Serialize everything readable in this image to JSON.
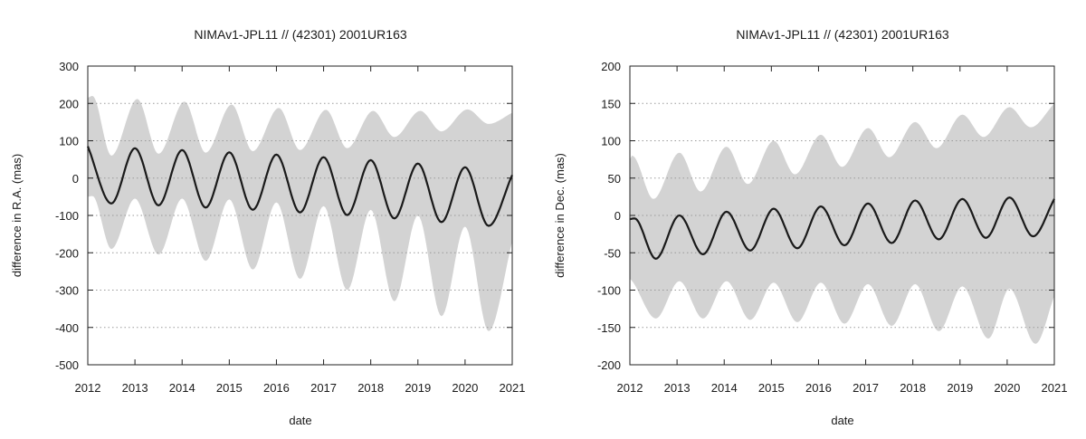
{
  "chart_data": [
    {
      "type": "line",
      "title": "NIMAv1-JPL11 // (42301) 2001UR163",
      "xlabel": "date",
      "ylabel": "difference in R.A. (mas)",
      "xlim": [
        2012,
        2021
      ],
      "ylim": [
        -500,
        300
      ],
      "x_ticks": [
        "2012",
        "2013",
        "2014",
        "2015",
        "2016",
        "2017",
        "2018",
        "2019",
        "2020",
        "2021"
      ],
      "y_ticks": [
        "300",
        "200",
        "100",
        "0",
        "-100",
        "-200",
        "-300",
        "-400",
        "-500"
      ],
      "grid": "horizontal dotted",
      "colors": {
        "band": "#d3d3d3",
        "line": "#1a1a1a"
      },
      "series": [
        {
          "kind": "mean-line",
          "x": [
            2012.0,
            2012.5,
            2013.0,
            2013.5,
            2014.0,
            2014.5,
            2015.0,
            2015.5,
            2016.0,
            2016.5,
            2017.0,
            2017.5,
            2018.0,
            2018.5,
            2019.0,
            2019.5,
            2020.0,
            2020.5,
            2021.0
          ],
          "y": [
            85,
            -68,
            80,
            -73,
            75,
            -79,
            69,
            -85,
            63,
            -92,
            56,
            -99,
            48,
            -108,
            39,
            -118,
            29,
            -128,
            8
          ]
        },
        {
          "kind": "uncertainty-band-upper",
          "x": [
            2012.0,
            2012.1,
            2012.5,
            2013.05,
            2013.5,
            2014.05,
            2014.5,
            2015.05,
            2015.5,
            2016.05,
            2016.5,
            2017.05,
            2017.5,
            2018.05,
            2018.5,
            2019.05,
            2019.5,
            2020.05,
            2020.5,
            2021.0
          ],
          "y": [
            215,
            220,
            60,
            212,
            65,
            205,
            68,
            197,
            72,
            188,
            75,
            183,
            80,
            180,
            110,
            180,
            125,
            184,
            145,
            175
          ]
        },
        {
          "kind": "uncertainty-band-lower",
          "x": [
            2012.0,
            2012.1,
            2012.5,
            2013.0,
            2013.5,
            2014.0,
            2014.5,
            2015.0,
            2015.5,
            2016.0,
            2016.5,
            2017.0,
            2017.5,
            2018.0,
            2018.5,
            2019.0,
            2019.5,
            2020.0,
            2020.5,
            2021.0
          ],
          "y": [
            -50,
            -48,
            -190,
            -55,
            -205,
            -55,
            -222,
            -57,
            -245,
            -65,
            -270,
            -75,
            -300,
            -85,
            -330,
            -100,
            -370,
            -130,
            -410,
            -170
          ]
        }
      ]
    },
    {
      "type": "line",
      "title": "NIMAv1-JPL11 // (42301) 2001UR163",
      "xlabel": "date",
      "ylabel": "difference in Dec. (mas)",
      "xlim": [
        2012,
        2021
      ],
      "ylim": [
        -200,
        200
      ],
      "x_ticks": [
        "2012",
        "2013",
        "2014",
        "2015",
        "2016",
        "2017",
        "2018",
        "2019",
        "2020",
        "2021"
      ],
      "y_ticks": [
        "200",
        "150",
        "100",
        "50",
        "0",
        "-50",
        "-100",
        "-150",
        "-200"
      ],
      "grid": "horizontal dotted",
      "colors": {
        "band": "#d3d3d3",
        "line": "#1a1a1a"
      },
      "series": [
        {
          "kind": "mean-line",
          "x": [
            2012.0,
            2012.1,
            2012.55,
            2013.05,
            2013.55,
            2014.05,
            2014.55,
            2015.05,
            2015.55,
            2016.05,
            2016.55,
            2017.05,
            2017.55,
            2018.05,
            2018.55,
            2019.05,
            2019.55,
            2020.05,
            2020.55,
            2021.0
          ],
          "y": [
            -5,
            -4,
            -58,
            0,
            -52,
            5,
            -47,
            9,
            -44,
            12,
            -40,
            16,
            -37,
            20,
            -32,
            22,
            -30,
            24,
            -28,
            22
          ]
        },
        {
          "kind": "uncertainty-band-upper",
          "x": [
            2012.0,
            2012.05,
            2012.5,
            2013.05,
            2013.5,
            2014.05,
            2014.5,
            2015.05,
            2015.5,
            2016.05,
            2016.5,
            2017.05,
            2017.5,
            2018.05,
            2018.5,
            2019.05,
            2019.5,
            2020.05,
            2020.5,
            2021.0
          ],
          "y": [
            75,
            80,
            22,
            84,
            32,
            92,
            42,
            100,
            55,
            108,
            65,
            117,
            78,
            125,
            90,
            135,
            105,
            145,
            118,
            150
          ]
        },
        {
          "kind": "uncertainty-band-lower",
          "x": [
            2012.0,
            2012.05,
            2012.55,
            2013.05,
            2013.55,
            2014.05,
            2014.55,
            2015.05,
            2015.55,
            2016.05,
            2016.55,
            2017.05,
            2017.55,
            2018.05,
            2018.55,
            2019.05,
            2019.6,
            2020.05,
            2020.6,
            2021.0
          ],
          "y": [
            -85,
            -88,
            -138,
            -88,
            -138,
            -88,
            -140,
            -90,
            -143,
            -90,
            -145,
            -92,
            -148,
            -92,
            -155,
            -95,
            -165,
            -98,
            -172,
            -108
          ]
        }
      ]
    }
  ]
}
